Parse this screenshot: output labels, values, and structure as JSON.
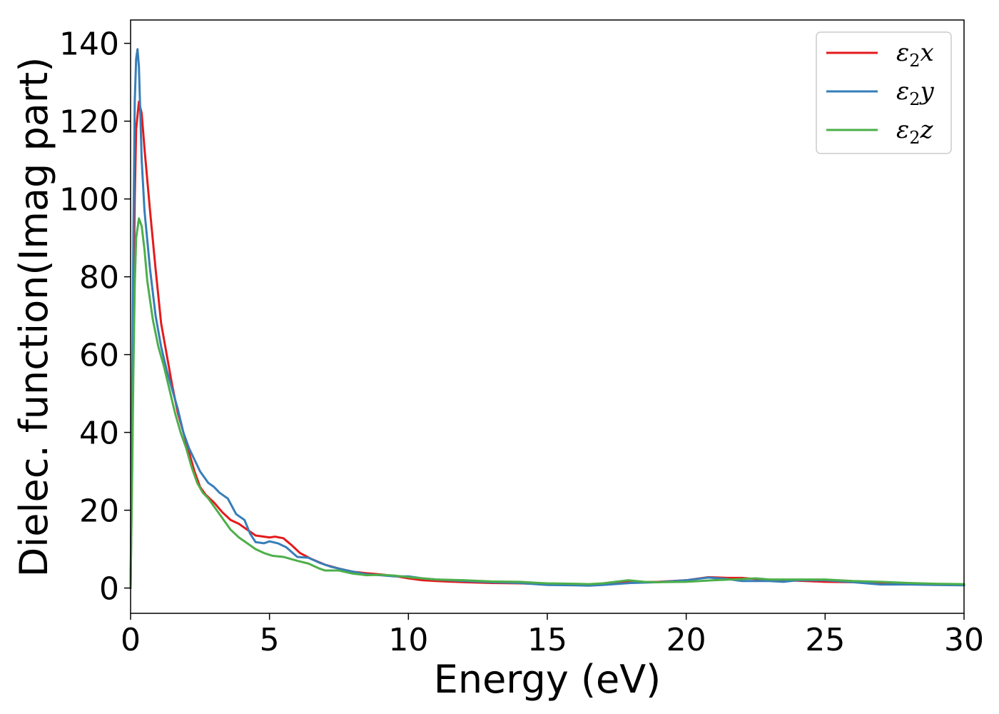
{
  "chart_data": {
    "type": "line",
    "title": "",
    "xlabel": "Energy (eV)",
    "ylabel": "Dielec. function(Imag part)",
    "xlim": [
      0,
      30
    ],
    "ylim": [
      -6.5,
      146
    ],
    "x_ticks": [
      0,
      5,
      10,
      15,
      20,
      25,
      30
    ],
    "y_ticks": [
      0,
      20,
      40,
      60,
      80,
      100,
      120,
      140
    ],
    "grid": false,
    "legend_position": "top-right",
    "series": [
      {
        "name": "ε₂x",
        "legend": {
          "symbol": "ε",
          "sub": "2",
          "axis": "x"
        },
        "color": "#e41a1c",
        "points": [
          [
            0,
            0
          ],
          [
            0.05,
            30
          ],
          [
            0.1,
            70
          ],
          [
            0.15,
            100
          ],
          [
            0.2,
            118
          ],
          [
            0.3,
            125
          ],
          [
            0.4,
            122
          ],
          [
            0.5,
            113
          ],
          [
            0.7,
            97
          ],
          [
            0.9,
            82
          ],
          [
            1.1,
            68
          ],
          [
            1.3,
            60
          ],
          [
            1.5,
            52
          ],
          [
            1.7,
            45
          ],
          [
            1.9,
            40
          ],
          [
            2.1,
            35
          ],
          [
            2.3,
            30
          ],
          [
            2.5,
            26
          ],
          [
            2.7,
            24
          ],
          [
            3.0,
            22
          ],
          [
            3.3,
            19.5
          ],
          [
            3.6,
            17.5
          ],
          [
            3.9,
            16.5
          ],
          [
            4.2,
            15
          ],
          [
            4.5,
            13.5
          ],
          [
            4.8,
            13.2
          ],
          [
            5.0,
            13
          ],
          [
            5.2,
            13.2
          ],
          [
            5.5,
            12.8
          ],
          [
            5.8,
            11
          ],
          [
            6.1,
            9
          ],
          [
            6.5,
            7.5
          ],
          [
            7.0,
            6
          ],
          [
            7.5,
            5
          ],
          [
            8.0,
            4.2
          ],
          [
            8.5,
            3.8
          ],
          [
            9.0,
            3.5
          ],
          [
            9.5,
            3.1
          ],
          [
            10.0,
            2.5
          ],
          [
            10.5,
            2.0
          ],
          [
            11.0,
            1.8
          ],
          [
            12.0,
            1.5
          ],
          [
            13.0,
            1.3
          ],
          [
            14.0,
            1.2
          ],
          [
            15.0,
            1.0
          ],
          [
            16.0,
            1.0
          ],
          [
            16.5,
            0.9
          ],
          [
            17.0,
            1.1
          ],
          [
            18.0,
            1.5
          ],
          [
            19.0,
            1.6
          ],
          [
            20.0,
            2.0
          ],
          [
            20.8,
            2.8
          ],
          [
            21.5,
            2.6
          ],
          [
            22.0,
            2.6
          ],
          [
            22.5,
            2.3
          ],
          [
            23.0,
            2.0
          ],
          [
            24.0,
            1.9
          ],
          [
            25.0,
            1.6
          ],
          [
            26.0,
            1.5
          ],
          [
            27.0,
            1.3
          ],
          [
            28.0,
            1.1
          ],
          [
            29.0,
            0.9
          ],
          [
            30.0,
            0.9
          ]
        ]
      },
      {
        "name": "ε₂y",
        "legend": {
          "symbol": "ε",
          "sub": "2",
          "axis": "y"
        },
        "color": "#377eb8",
        "points": [
          [
            0,
            0
          ],
          [
            0.05,
            40
          ],
          [
            0.1,
            90
          ],
          [
            0.15,
            125
          ],
          [
            0.2,
            136
          ],
          [
            0.25,
            138.5
          ],
          [
            0.3,
            134
          ],
          [
            0.35,
            122
          ],
          [
            0.4,
            110
          ],
          [
            0.5,
            97
          ],
          [
            0.7,
            82
          ],
          [
            0.9,
            70
          ],
          [
            1.1,
            62
          ],
          [
            1.3,
            56
          ],
          [
            1.5,
            51
          ],
          [
            1.7,
            46
          ],
          [
            1.9,
            40
          ],
          [
            2.1,
            36
          ],
          [
            2.3,
            33
          ],
          [
            2.5,
            30
          ],
          [
            2.8,
            27
          ],
          [
            3.0,
            26
          ],
          [
            3.2,
            24.5
          ],
          [
            3.5,
            23
          ],
          [
            3.8,
            19
          ],
          [
            4.1,
            17.5
          ],
          [
            4.3,
            14
          ],
          [
            4.5,
            11.8
          ],
          [
            4.8,
            11.5
          ],
          [
            5.0,
            12
          ],
          [
            5.3,
            11.5
          ],
          [
            5.6,
            10.5
          ],
          [
            6.0,
            8
          ],
          [
            6.4,
            7.8
          ],
          [
            6.8,
            6.5
          ],
          [
            7.2,
            5.5
          ],
          [
            7.8,
            4.5
          ],
          [
            8.5,
            3.5
          ],
          [
            9.0,
            3.3
          ],
          [
            9.5,
            3.0
          ],
          [
            10.0,
            3.0
          ],
          [
            10.5,
            2.5
          ],
          [
            11.0,
            2.2
          ],
          [
            12.0,
            1.8
          ],
          [
            13.0,
            1.5
          ],
          [
            14.0,
            1.3
          ],
          [
            15.0,
            0.8
          ],
          [
            16.0,
            0.7
          ],
          [
            16.5,
            0.6
          ],
          [
            17.0,
            0.8
          ],
          [
            18.0,
            1.3
          ],
          [
            19.0,
            1.5
          ],
          [
            20.0,
            2.0
          ],
          [
            20.8,
            2.7
          ],
          [
            21.5,
            2.3
          ],
          [
            22.0,
            1.8
          ],
          [
            23.0,
            1.8
          ],
          [
            23.5,
            1.6
          ],
          [
            24.0,
            2.0
          ],
          [
            25.0,
            2.0
          ],
          [
            26.0,
            1.5
          ],
          [
            27.0,
            0.9
          ],
          [
            28.0,
            0.9
          ],
          [
            29.0,
            0.8
          ],
          [
            30.0,
            0.7
          ]
        ]
      },
      {
        "name": "ε₂z",
        "legend": {
          "symbol": "ε",
          "sub": "2",
          "axis": "z"
        },
        "color": "#4daf4a",
        "points": [
          [
            0,
            0
          ],
          [
            0.05,
            25
          ],
          [
            0.1,
            55
          ],
          [
            0.15,
            78
          ],
          [
            0.2,
            90
          ],
          [
            0.3,
            95
          ],
          [
            0.4,
            93
          ],
          [
            0.5,
            87
          ],
          [
            0.6,
            79
          ],
          [
            0.8,
            69
          ],
          [
            1.0,
            62
          ],
          [
            1.2,
            57
          ],
          [
            1.4,
            51
          ],
          [
            1.6,
            45
          ],
          [
            1.8,
            40
          ],
          [
            2.0,
            36
          ],
          [
            2.2,
            31
          ],
          [
            2.4,
            27
          ],
          [
            2.6,
            24.5
          ],
          [
            2.8,
            23
          ],
          [
            3.0,
            21
          ],
          [
            3.3,
            18
          ],
          [
            3.6,
            15
          ],
          [
            3.9,
            13
          ],
          [
            4.2,
            11.5
          ],
          [
            4.5,
            10
          ],
          [
            4.8,
            9
          ],
          [
            5.1,
            8.3
          ],
          [
            5.5,
            8
          ],
          [
            6.0,
            7
          ],
          [
            6.4,
            6.3
          ],
          [
            6.8,
            5
          ],
          [
            7.0,
            4.5
          ],
          [
            7.5,
            4.5
          ],
          [
            8.0,
            3.7
          ],
          [
            8.5,
            3.3
          ],
          [
            9.0,
            3.4
          ],
          [
            9.5,
            3.2
          ],
          [
            10.0,
            2.8
          ],
          [
            11.0,
            2.2
          ],
          [
            12.0,
            2.0
          ],
          [
            13.0,
            1.7
          ],
          [
            14.0,
            1.6
          ],
          [
            15.0,
            1.2
          ],
          [
            16.0,
            1.1
          ],
          [
            16.5,
            1.0
          ],
          [
            17.0,
            1.2
          ],
          [
            17.9,
            2.0
          ],
          [
            18.5,
            1.6
          ],
          [
            19.0,
            1.5
          ],
          [
            20.0,
            1.6
          ],
          [
            21.0,
            2.0
          ],
          [
            22.0,
            2.3
          ],
          [
            22.5,
            2.5
          ],
          [
            23.0,
            2.2
          ],
          [
            24.0,
            2.2
          ],
          [
            25.0,
            2.2
          ],
          [
            26.0,
            1.8
          ],
          [
            27.0,
            1.6
          ],
          [
            28.0,
            1.3
          ],
          [
            29.0,
            1.1
          ],
          [
            30.0,
            1.0
          ]
        ]
      }
    ]
  }
}
